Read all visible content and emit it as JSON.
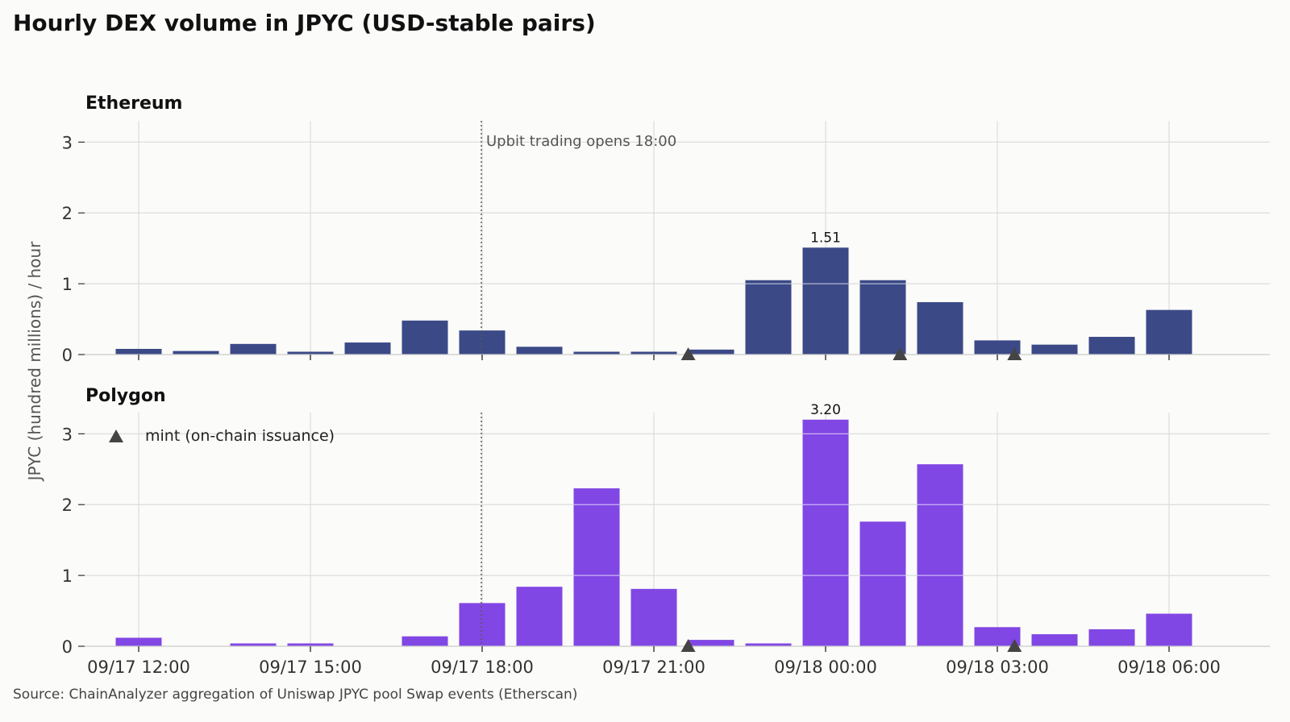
{
  "title": "Hourly DEX volume in JPYC (USD-stable pairs)",
  "source": "Source: ChainAnalyzer aggregation of Uniswap JPYC pool Swap events (Etherscan)",
  "colors": {
    "ethereum": "#3b4987",
    "polygon": "#8147e4",
    "marker": "#444444"
  },
  "chart_data": {
    "type": "bar",
    "ylabel": "JPYC (hundred millions) / hour",
    "ylim": [
      0,
      3.3
    ],
    "y_ticks": [
      "0",
      "1",
      "2",
      "3"
    ],
    "x_tick_labels": [
      "09/17 12:00",
      "09/17 15:00",
      "09/17 18:00",
      "09/17 21:00",
      "09/18 00:00",
      "09/18 03:00",
      "09/18 06:00"
    ],
    "x_ticks_hours": [
      0,
      3,
      6,
      9,
      12,
      15,
      18
    ],
    "bar_hours": [
      0,
      1,
      2,
      3,
      4,
      5,
      6,
      7,
      8,
      9,
      10,
      11,
      12,
      13,
      14,
      15,
      16,
      17,
      18
    ],
    "annotation": {
      "text": "Upbit trading opens 18:00",
      "hour": 6
    },
    "legend": {
      "label": "mint (on-chain issuance)",
      "position": "top-left"
    },
    "grid": true,
    "panels": [
      {
        "name": "Ethereum",
        "values": [
          0.08,
          0.05,
          0.15,
          0.04,
          0.17,
          0.48,
          0.34,
          0.11,
          0.04,
          0.04,
          0.07,
          1.05,
          1.51,
          1.05,
          0.74,
          0.2,
          0.14,
          0.25,
          0.63
        ],
        "label_value": "1.51",
        "label_hour": 12,
        "mint_hours": [
          9.6,
          13.3,
          15.3
        ]
      },
      {
        "name": "Polygon",
        "values": [
          0.12,
          0,
          0.04,
          0.04,
          0,
          0.14,
          0.61,
          0.84,
          2.23,
          0.81,
          0.09,
          0.04,
          3.2,
          1.76,
          2.57,
          0.27,
          0.17,
          0.24,
          0.46
        ],
        "label_value": "3.20",
        "label_hour": 12,
        "mint_hours": [
          9.6,
          15.3
        ]
      }
    ]
  }
}
